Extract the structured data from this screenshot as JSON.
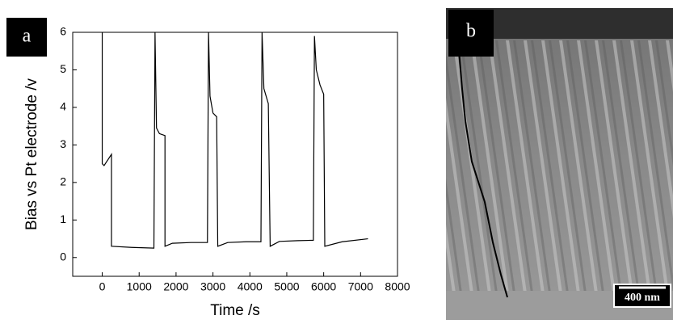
{
  "chart_data": {
    "type": "line",
    "panel_label": "a",
    "xlabel": "Time /s",
    "ylabel": "Bias vs Pt electrode /v",
    "x": [
      0,
      0,
      50,
      250,
      250,
      800,
      1400,
      1430,
      1470,
      1550,
      1700,
      1700,
      1900,
      2400,
      2850,
      2880,
      2920,
      3000,
      3100,
      3130,
      3400,
      3900,
      4300,
      4330,
      4380,
      4500,
      4550,
      4800,
      5300,
      5720,
      5750,
      5800,
      5900,
      6000,
      6030,
      6500,
      7200
    ],
    "values": [
      6,
      2.5,
      2.45,
      2.75,
      0.3,
      0.27,
      0.25,
      6,
      3.45,
      3.3,
      3.25,
      0.3,
      0.38,
      0.4,
      0.4,
      6,
      4.3,
      3.85,
      3.75,
      0.3,
      0.4,
      0.42,
      0.42,
      6,
      4.5,
      4.1,
      0.3,
      0.43,
      0.45,
      0.46,
      5.9,
      5.0,
      4.6,
      4.35,
      0.3,
      0.42,
      0.5
    ],
    "color": "#000000",
    "xlim": [
      -800,
      8000
    ],
    "xticks": [
      0,
      1000,
      2000,
      3000,
      4000,
      5000,
      6000,
      7000,
      8000
    ],
    "ylim": [
      -0.5,
      6
    ],
    "yticks": [
      0,
      1,
      2,
      3,
      4,
      5,
      6
    ]
  },
  "image": {
    "panel_label": "b",
    "scale_bar": "400 nm"
  }
}
